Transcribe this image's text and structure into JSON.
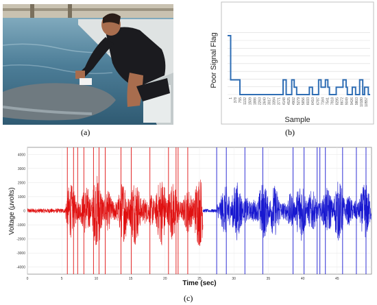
{
  "captions": {
    "a": "(a)",
    "b": "(b)",
    "c": "(c)"
  },
  "photo": {
    "colors": {
      "water_dark": "#3d6f8a",
      "water_light": "#7fa9bf",
      "pool_edge": "#d9dede",
      "wetsuit": "#1b1b1f",
      "skin": "#a86d4e",
      "dolphin": "#6f7a80"
    }
  },
  "chart_data": [
    {
      "type": "line",
      "title": "",
      "xlabel": "Sample",
      "ylabel": "Poor Signal Flag",
      "ylim": [
        0,
        200
      ],
      "y_ticks": [],
      "grid": true,
      "color": "#2e6db4",
      "categories": [
        "1",
        "378",
        "755",
        "1132",
        "1509",
        "1886",
        "2263",
        "2640",
        "3017",
        "3394",
        "3771",
        "4148",
        "4525",
        "4902",
        "5279",
        "5656",
        "6033",
        "6410",
        "6787",
        "7164",
        "7541",
        "7918",
        "8295",
        "8672",
        "9049",
        "9426",
        "9803",
        "10180",
        "10557"
      ],
      "x": [
        0,
        1,
        1,
        4,
        4,
        7,
        7,
        14,
        14,
        18,
        18,
        19,
        19,
        20,
        20,
        20.8,
        20.8,
        21.6,
        21.6,
        22.4,
        22.4,
        23.2,
        23.2,
        26.5,
        26.5,
        27.5,
        27.5,
        29.5,
        29.5,
        30.3,
        30.3,
        31.7,
        31.7,
        32.5,
        32.5,
        33,
        33,
        35.2,
        35.2,
        37.4,
        37.4,
        38.4,
        38.4,
        38.8,
        38.8,
        40.4,
        40.4,
        41.5,
        41.5,
        42.8,
        42.8,
        43.8,
        43.8,
        44.4,
        44.4,
        45.6,
        45.6,
        46.2
      ],
      "y": [
        200,
        200,
        50,
        50,
        0,
        0,
        0,
        0,
        0,
        0,
        50,
        50,
        0,
        0,
        0,
        0,
        50,
        50,
        25,
        25,
        0,
        0,
        0,
        0,
        25,
        25,
        0,
        0,
        50,
        50,
        25,
        25,
        50,
        50,
        25,
        25,
        0,
        0,
        25,
        25,
        50,
        50,
        25,
        25,
        0,
        0,
        25,
        25,
        0,
        0,
        50,
        50,
        0,
        0,
        25,
        25,
        0,
        0
      ],
      "xmax": 46.2
    },
    {
      "type": "line",
      "xlabel": "Time (sec)",
      "ylabel": "Voltage (μvolts)",
      "xlim": [
        0,
        50
      ],
      "ylim": [
        -4500,
        4500
      ],
      "x_ticks": [
        "0",
        "5",
        "10",
        "15",
        "20",
        "25",
        "30",
        "35",
        "40",
        "45"
      ],
      "y_ticks": [
        "4000",
        "3000",
        "2000",
        "1000",
        "0",
        "-1000",
        "-2000",
        "-3000",
        "-4000"
      ],
      "grid": true,
      "series": [
        {
          "color": "#e01010",
          "segment_sec": [
            0,
            25.5
          ],
          "quiet_until_sec": 5.5,
          "quiet_amplitude": 160,
          "active_amplitude": 2600
        },
        {
          "color": "#1818d0",
          "segment_sec": [
            25.5,
            50
          ],
          "quiet_until_sec": 27.5,
          "quiet_amplitude": 120,
          "active_amplitude": 2200
        }
      ],
      "spikes_sec": [
        5.8,
        6.7,
        7.3,
        8.2,
        9.6,
        10.4,
        11.3,
        13.6,
        15.1,
        17.8,
        20.5,
        21.6,
        21.9,
        23.3,
        27.5,
        28.9,
        31.6,
        34.2,
        38.6,
        40.2,
        42.1,
        42.5,
        43.3,
        45.8,
        47.8,
        49.2
      ]
    }
  ]
}
